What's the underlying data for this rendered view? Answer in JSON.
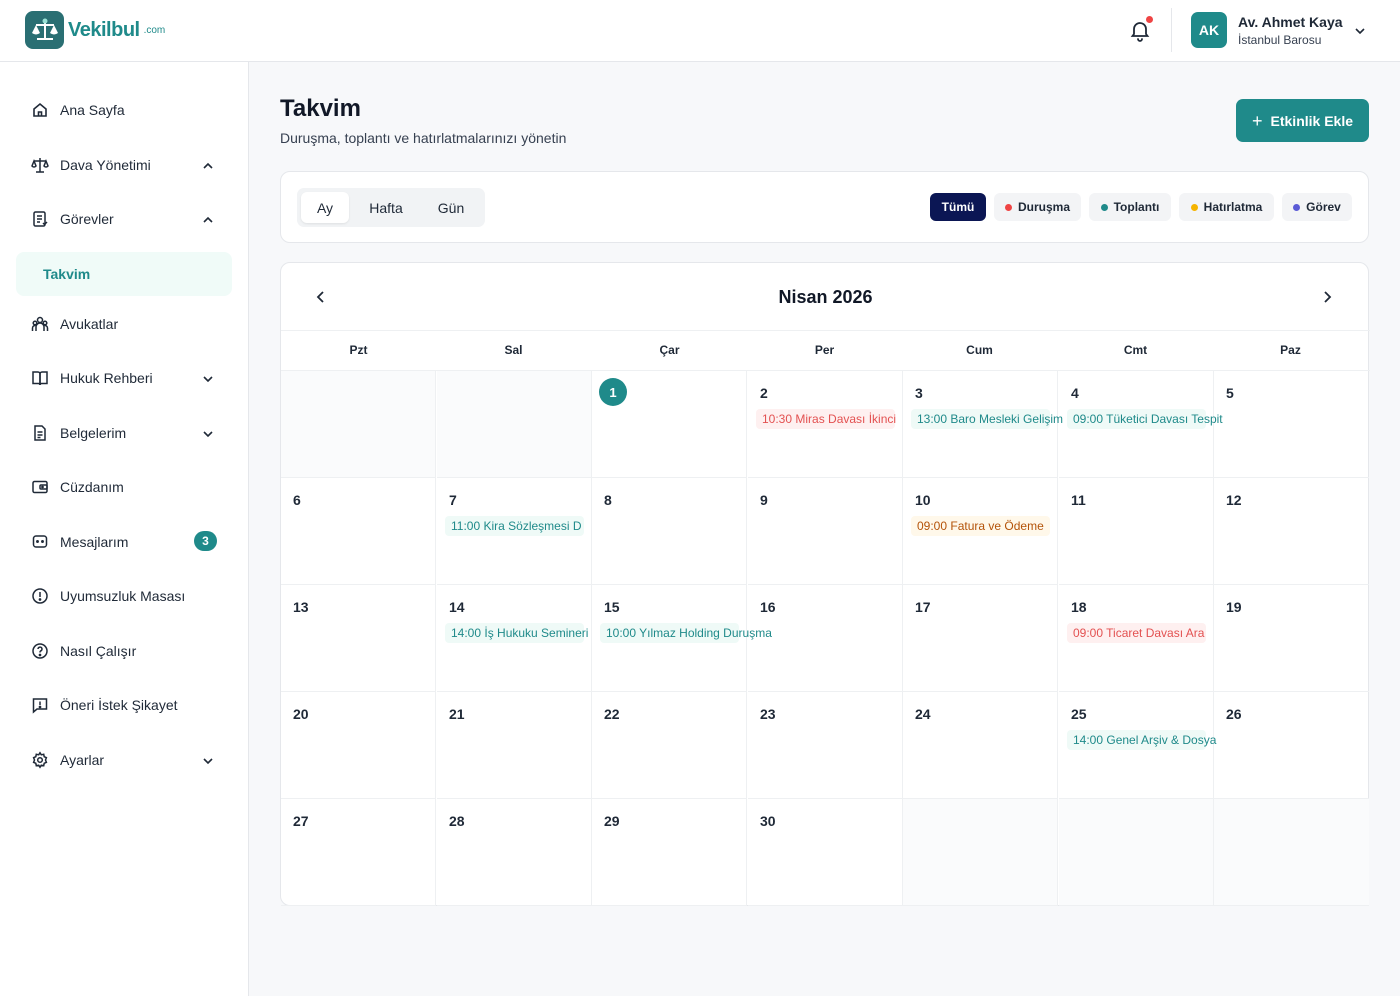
{
  "brand": {
    "name": "Vekilbul",
    "suffix": ".com"
  },
  "header": {
    "user": {
      "initials": "AK",
      "name": "Av. Ahmet Kaya",
      "org": "İstanbul Barosu"
    }
  },
  "sidebar": {
    "items": [
      {
        "label": "Ana Sayfa"
      },
      {
        "label": "Dava Yönetimi"
      },
      {
        "label": "Görevler"
      },
      {
        "label": "Takvim"
      },
      {
        "label": "Avukatlar"
      },
      {
        "label": "Hukuk Rehberi"
      },
      {
        "label": "Belgelerim"
      },
      {
        "label": "Cüzdanım"
      },
      {
        "label": "Mesajlarım",
        "badge": "3"
      },
      {
        "label": "Uyumsuzluk Masası"
      },
      {
        "label": "Nasıl Çalışır"
      },
      {
        "label": "Öneri İstek Şikayet"
      },
      {
        "label": "Ayarlar"
      }
    ]
  },
  "page": {
    "title": "Takvim",
    "subtitle": "Duruşma, toplantı ve hatırlatmalarınızı yönetin",
    "add_button": "Etkinlik Ekle"
  },
  "view_tabs": [
    "Ay",
    "Hafta",
    "Gün"
  ],
  "filters": [
    {
      "label": "Tümü"
    },
    {
      "label": "Duruşma",
      "color": "#ef4444"
    },
    {
      "label": "Toplantı",
      "color": "#1f8a8a"
    },
    {
      "label": "Hatırlatma",
      "color": "#f5b400"
    },
    {
      "label": "Görev",
      "color": "#5b5bd6"
    }
  ],
  "calendar": {
    "month": "Nisan 2026",
    "weekdays": [
      "Pzt",
      "Sal",
      "Çar",
      "Per",
      "Cum",
      "Cmt",
      "Paz"
    ],
    "cells": [
      {
        "day": ""
      },
      {
        "day": ""
      },
      {
        "day": "1",
        "today": true
      },
      {
        "day": "2",
        "event": "10:30 Miras Davası İkinci",
        "type": "durusma"
      },
      {
        "day": "3",
        "event": "13:00 Baro Mesleki Gelişim",
        "type": "toplanti"
      },
      {
        "day": "4",
        "event": "09:00 Tüketici Davası Tespit",
        "type": "toplanti"
      },
      {
        "day": "5"
      },
      {
        "day": "6"
      },
      {
        "day": "7",
        "event": "11:00 Kira Sözleşmesi D",
        "type": "toplanti"
      },
      {
        "day": "8"
      },
      {
        "day": "9"
      },
      {
        "day": "10",
        "event": "09:00 Fatura ve Ödeme",
        "type": "hatirlatma"
      },
      {
        "day": "11"
      },
      {
        "day": "12"
      },
      {
        "day": "13"
      },
      {
        "day": "14",
        "event": "14:00 İş Hukuku Semineri",
        "type": "toplanti"
      },
      {
        "day": "15",
        "event": "10:00 Yılmaz Holding Duruşma",
        "type": "toplanti"
      },
      {
        "day": "16"
      },
      {
        "day": "17"
      },
      {
        "day": "18",
        "event": "09:00 Ticaret Davası Ara",
        "type": "durusma"
      },
      {
        "day": "19"
      },
      {
        "day": "20"
      },
      {
        "day": "21"
      },
      {
        "day": "22"
      },
      {
        "day": "23"
      },
      {
        "day": "24"
      },
      {
        "day": "25",
        "event": "14:00 Genel Arşiv & Dosya",
        "type": "toplanti"
      },
      {
        "day": "26"
      },
      {
        "day": "27"
      },
      {
        "day": "28"
      },
      {
        "day": "29"
      },
      {
        "day": "30"
      },
      {
        "day": ""
      },
      {
        "day": ""
      },
      {
        "day": ""
      }
    ]
  },
  "colors": {
    "accent": "#1f8a8a",
    "navy": "#0b1654",
    "danger": "#ef4444"
  }
}
